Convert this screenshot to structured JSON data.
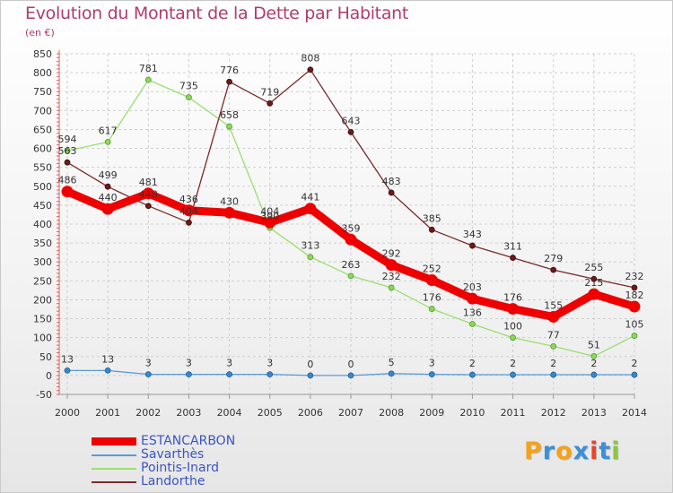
{
  "title": "Evolution du Montant de la Dette par Habitant",
  "subtitle": "(en €)",
  "logo": {
    "letters": [
      "P",
      "r",
      "o",
      "x",
      "i",
      "t",
      "i"
    ],
    "colors": [
      "#f4a21c",
      "#3d8fd6",
      "#f4a21c",
      "#3d8fd6",
      "#e8452c",
      "#3d8fd6",
      "#8cc63f"
    ]
  },
  "chart_data": {
    "type": "line",
    "title": "Evolution du Montant de la Dette par Habitant",
    "ylabel": "(en €)",
    "x": [
      "2000",
      "2001",
      "2002",
      "2003",
      "2004",
      "2005",
      "2006",
      "2007",
      "2008",
      "2009",
      "2010",
      "2011",
      "2012",
      "2013",
      "2014"
    ],
    "ylim": [
      -50,
      850
    ],
    "yticks": [
      -50,
      0,
      50,
      100,
      150,
      200,
      250,
      300,
      350,
      400,
      450,
      500,
      550,
      600,
      650,
      700,
      750,
      800,
      850
    ],
    "grid": true,
    "legend": "bottom-left",
    "series": [
      {
        "name": "ESTANCARBON",
        "color": "#ee0000",
        "values": [
          486,
          440,
          481,
          436,
          430,
          404,
          441,
          359,
          292,
          252,
          203,
          176,
          155,
          215,
          182
        ]
      },
      {
        "name": "Savarthès",
        "color": "#5b9bd5",
        "values": [
          13,
          13,
          3,
          3,
          3,
          3,
          0,
          0,
          5,
          3,
          2,
          2,
          2,
          2,
          2
        ]
      },
      {
        "name": "Pointis-Inard",
        "color": "#99e06e",
        "values": [
          594,
          617,
          781,
          735,
          658,
          390,
          313,
          263,
          232,
          176,
          136,
          100,
          77,
          51,
          105
        ]
      },
      {
        "name": "Landorthe",
        "color": "#7a2a2a",
        "values": [
          563,
          499,
          448,
          404,
          776,
          719,
          808,
          643,
          483,
          385,
          343,
          311,
          279,
          255,
          232
        ]
      }
    ]
  }
}
